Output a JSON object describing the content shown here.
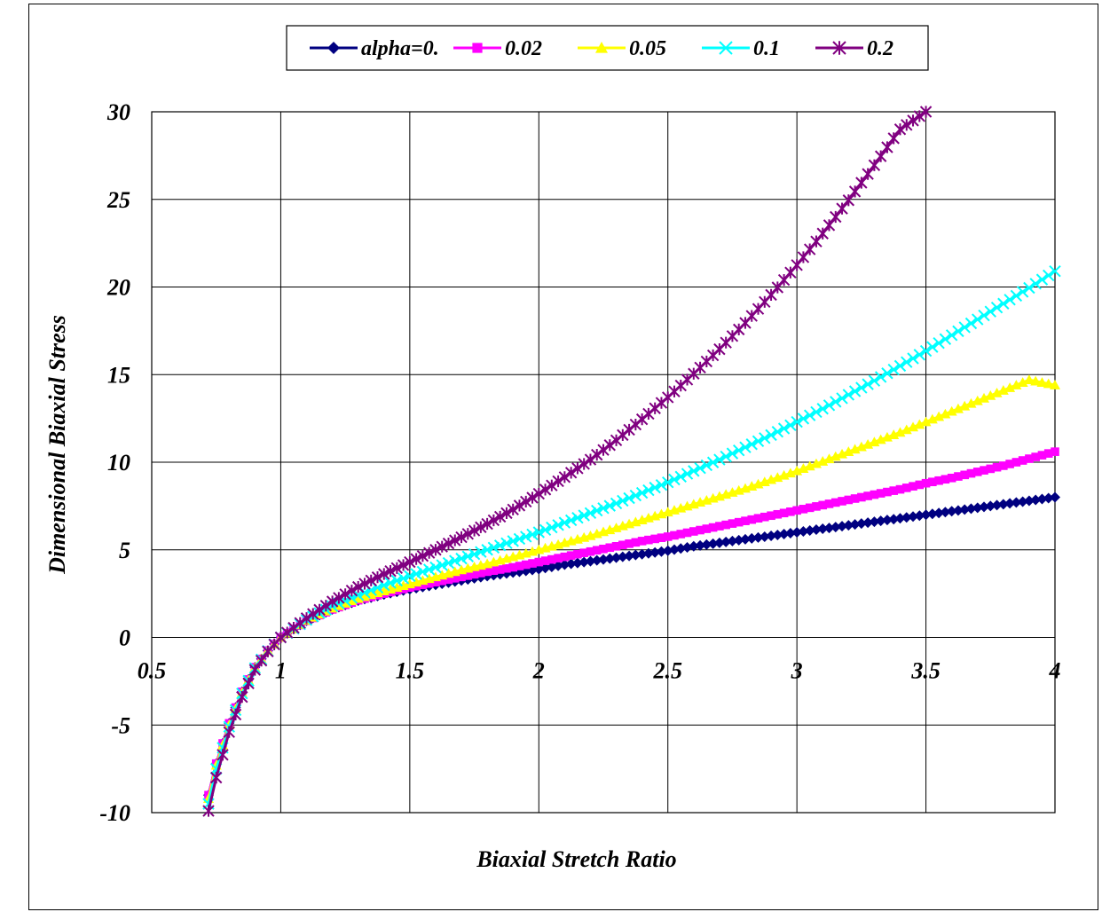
{
  "chart_data": {
    "type": "line",
    "title": "",
    "xlabel": "Biaxial Stretch Ratio",
    "ylabel": "Dimensional Biaxial Stress",
    "xlim": [
      0.5,
      4
    ],
    "ylim": [
      -10,
      30
    ],
    "xticks": [
      "0.5",
      "1",
      "1.5",
      "2",
      "2.5",
      "3",
      "3.5",
      "4"
    ],
    "yticks": [
      "-10",
      "-5",
      "0",
      "5",
      "10",
      "15",
      "20",
      "25",
      "30"
    ],
    "grid": true,
    "legend_position": "top",
    "x": [
      0.72,
      0.75,
      0.8,
      0.85,
      0.9,
      0.95,
      1.0,
      1.1,
      1.2,
      1.3,
      1.4,
      1.5,
      1.6,
      1.7,
      1.8,
      1.9,
      2.0,
      2.1,
      2.2,
      2.3,
      2.4,
      2.5,
      2.6,
      2.7,
      2.8,
      2.9,
      3.0,
      3.1,
      3.2,
      3.3,
      3.4,
      3.5,
      3.6,
      3.7,
      3.8,
      3.9,
      4.0
    ],
    "series": [
      {
        "name": "alpha=0.",
        "color": "#000080",
        "marker": "diamond",
        "values": [
          -9.0,
          -7.2,
          -4.9,
          -3.1,
          -1.7,
          -0.75,
          0.0,
          0.95,
          1.6,
          2.1,
          2.45,
          2.75,
          3.0,
          3.25,
          3.5,
          3.7,
          3.9,
          4.15,
          4.35,
          4.55,
          4.75,
          4.95,
          5.2,
          5.4,
          5.6,
          5.8,
          6.0,
          6.2,
          6.4,
          6.6,
          6.8,
          7.0,
          7.2,
          7.4,
          7.6,
          7.8,
          8.0
        ]
      },
      {
        "name": "0.02",
        "color": "#ff00ff",
        "marker": "square",
        "values": [
          -9.0,
          -7.2,
          -4.9,
          -3.1,
          -1.7,
          -0.75,
          0.0,
          0.95,
          1.6,
          2.12,
          2.5,
          2.85,
          3.15,
          3.45,
          3.75,
          4.0,
          4.3,
          4.6,
          4.9,
          5.2,
          5.5,
          5.75,
          6.05,
          6.35,
          6.65,
          6.95,
          7.25,
          7.55,
          7.85,
          8.15,
          8.45,
          8.8,
          9.1,
          9.45,
          9.8,
          10.2,
          10.6
        ]
      },
      {
        "name": "0.05",
        "color": "#ffff00",
        "marker": "triangle",
        "values": [
          -9.2,
          -7.3,
          -5.0,
          -3.15,
          -1.72,
          -0.75,
          0.0,
          0.97,
          1.67,
          2.22,
          2.65,
          3.05,
          3.45,
          3.85,
          4.2,
          4.6,
          5.0,
          5.4,
          5.8,
          6.25,
          6.7,
          7.15,
          7.6,
          8.05,
          8.5,
          9.0,
          9.5,
          10.05,
          10.6,
          11.15,
          11.7,
          12.3,
          12.9,
          13.5,
          14.1,
          14.7,
          14.4
        ]
      },
      {
        "name": "0.1",
        "color": "#00ffff",
        "marker": "x",
        "values": [
          -9.5,
          -7.5,
          -5.1,
          -3.2,
          -1.75,
          -0.77,
          0.0,
          1.0,
          1.78,
          2.42,
          2.98,
          3.5,
          4.0,
          4.5,
          5.0,
          5.5,
          6.0,
          6.55,
          7.1,
          7.65,
          8.25,
          8.85,
          9.5,
          10.15,
          10.85,
          11.55,
          12.3,
          13.05,
          13.85,
          14.65,
          15.5,
          16.35,
          17.25,
          18.15,
          19.05,
          19.95,
          20.9
        ]
      },
      {
        "name": "0.2",
        "color": "#800080",
        "marker": "star",
        "values": [
          -9.9,
          -8.0,
          -5.4,
          -3.4,
          -1.85,
          -0.8,
          0.0,
          1.1,
          2.05,
          2.88,
          3.62,
          4.3,
          5.0,
          5.72,
          6.48,
          7.3,
          8.2,
          9.15,
          10.15,
          11.25,
          12.45,
          13.7,
          15.05,
          16.45,
          17.95,
          19.55,
          21.25,
          23.05,
          24.95,
          26.95,
          29.0,
          30.0,
          null,
          null,
          null,
          null,
          null
        ]
      }
    ]
  }
}
